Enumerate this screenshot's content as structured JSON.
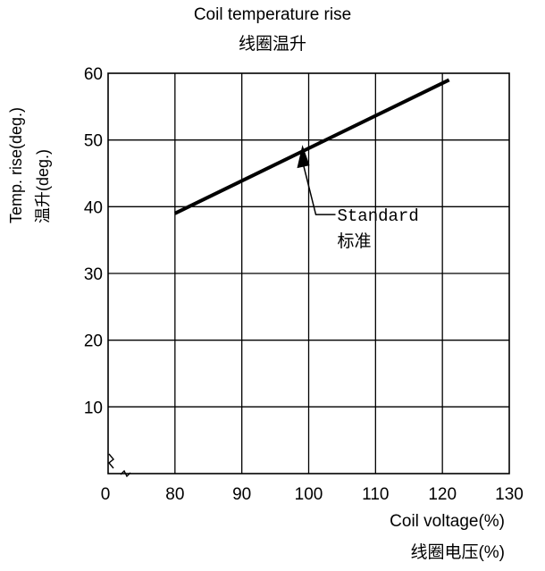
{
  "chart_data": {
    "type": "line",
    "title": "Coil temperature rise",
    "title_cn": "线圈温升",
    "xlabel": "Coil voltage(%)",
    "xlabel_cn": "线圈电压(%)",
    "ylabel": "Temp. rise(deg.)",
    "ylabel_cn": "温升(deg.)",
    "x_ticks": [
      "0",
      "80",
      "90",
      "100",
      "110",
      "120",
      "130"
    ],
    "y_ticks": [
      "10",
      "20",
      "30",
      "40",
      "50",
      "60"
    ],
    "xlim": [
      70,
      130
    ],
    "ylim": [
      0,
      60
    ],
    "grid": true,
    "series": [
      {
        "x": [
          80,
          121
        ],
        "y": [
          39,
          59
        ]
      }
    ],
    "annotation": {
      "text": "Standard",
      "text_cn": "标准",
      "x": 100,
      "y": 49
    }
  }
}
